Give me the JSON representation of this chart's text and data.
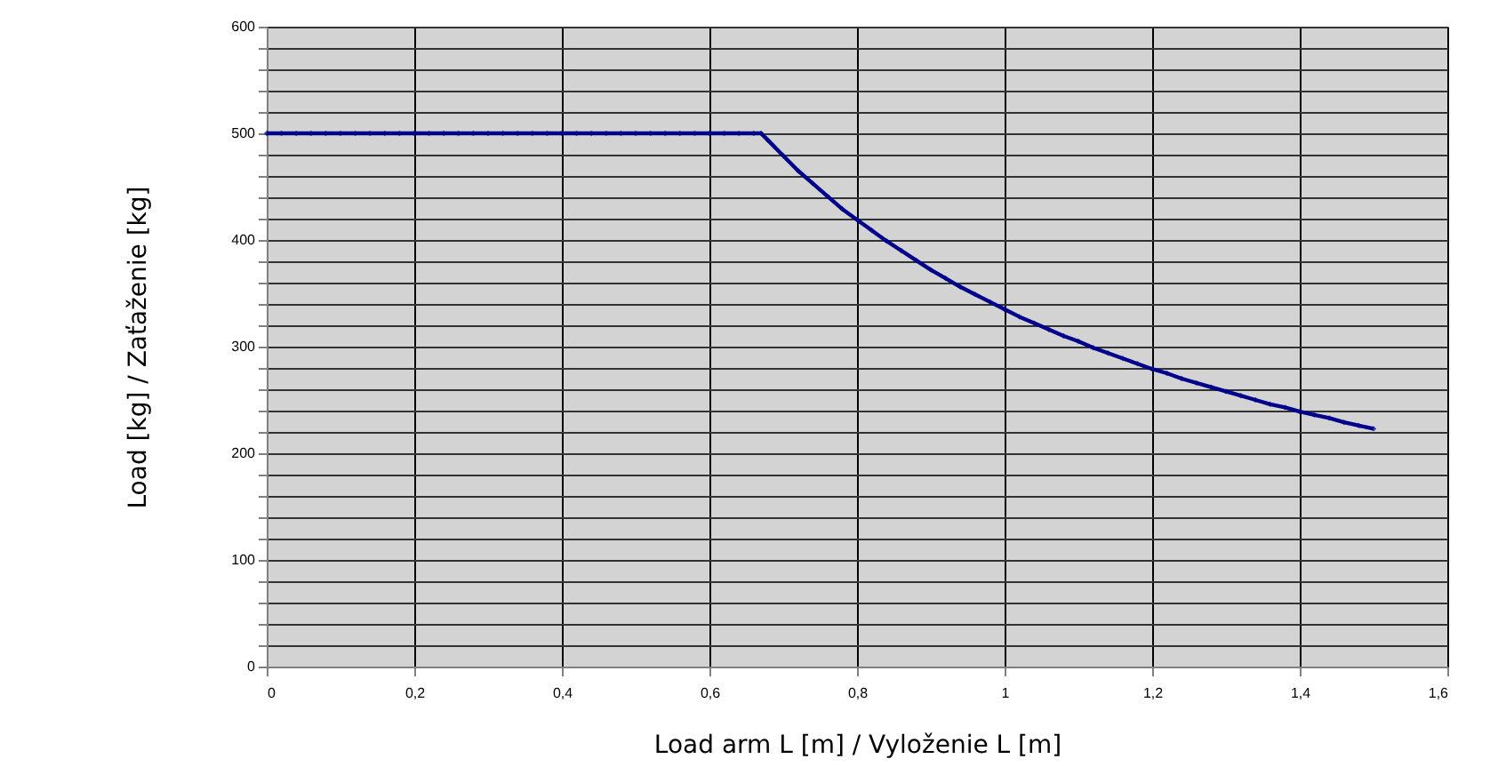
{
  "chart_data": {
    "type": "line",
    "xlabel": "Load arm L [m]  /  Vyloženie L  [m]",
    "ylabel": "Load [kg]  /  Zaťaženie  [kg]",
    "x": [
      0,
      0.02,
      0.04,
      0.06,
      0.08,
      0.1,
      0.12,
      0.14,
      0.16,
      0.18,
      0.2,
      0.22,
      0.24,
      0.26,
      0.28,
      0.3,
      0.32,
      0.34,
      0.36,
      0.38,
      0.4,
      0.42,
      0.44,
      0.46,
      0.48,
      0.5,
      0.52,
      0.54,
      0.56,
      0.58,
      0.6,
      0.62,
      0.64,
      0.66,
      0.67,
      0.68,
      0.7,
      0.72,
      0.74,
      0.76,
      0.78,
      0.8,
      0.82,
      0.84,
      0.86,
      0.88,
      0.9,
      0.92,
      0.94,
      0.96,
      0.98,
      1,
      1.02,
      1.04,
      1.06,
      1.08,
      1.1,
      1.12,
      1.14,
      1.16,
      1.18,
      1.2,
      1.22,
      1.24,
      1.26,
      1.28,
      1.3,
      1.32,
      1.34,
      1.36,
      1.38,
      1.4,
      1.42,
      1.44,
      1.46,
      1.48,
      1.5
    ],
    "series": [
      {
        "color": "#00008b",
        "values": [
          500,
          500,
          500,
          500,
          500,
          500,
          500,
          500,
          500,
          500,
          500,
          500,
          500,
          500,
          500,
          500,
          500,
          500,
          500,
          500,
          500,
          500,
          500,
          500,
          500,
          500,
          500,
          500,
          500,
          500,
          500,
          500,
          500,
          500,
          500,
          493,
          479,
          465,
          453,
          441,
          429,
          419,
          409,
          399,
          390,
          381,
          372,
          364,
          356,
          349,
          342,
          335,
          328,
          322,
          316,
          310,
          305,
          299,
          294,
          289,
          284,
          279,
          275,
          270,
          266,
          262,
          258,
          254,
          250,
          246,
          243,
          239,
          236,
          233,
          229,
          226,
          223
        ]
      }
    ],
    "xlim": [
      0,
      1.6
    ],
    "xticks": [
      0,
      {
        "value": 0.2,
        "label": "0,2"
      },
      {
        "value": 0.4,
        "label": "0,4"
      },
      {
        "value": 0.6,
        "label": "0,6"
      },
      {
        "value": 0.8,
        "label": "0,8"
      },
      1,
      {
        "value": 1.2,
        "label": "1,2"
      },
      {
        "value": 1.4,
        "label": "1,4"
      },
      {
        "value": 1.6,
        "label": "1,6"
      }
    ],
    "ylim": [
      0,
      600
    ],
    "yticks": [
      0,
      {
        "value": 20,
        "label": null
      },
      {
        "value": 40,
        "label": null
      },
      {
        "value": 60,
        "label": null
      },
      {
        "value": 80,
        "label": null
      },
      100,
      {
        "value": 120,
        "label": null
      },
      {
        "value": 140,
        "label": null
      },
      {
        "value": 160,
        "label": null
      },
      {
        "value": 180,
        "label": null
      },
      200,
      {
        "value": 220,
        "label": null
      },
      {
        "value": 240,
        "label": null
      },
      {
        "value": 260,
        "label": null
      },
      {
        "value": 280,
        "label": null
      },
      300,
      {
        "value": 320,
        "label": null
      },
      {
        "value": 340,
        "label": null
      },
      {
        "value": 360,
        "label": null
      },
      {
        "value": 380,
        "label": null
      },
      400,
      {
        "value": 420,
        "label": null
      },
      {
        "value": 440,
        "label": null
      },
      {
        "value": 460,
        "label": null
      },
      {
        "value": 480,
        "label": null
      },
      500,
      {
        "value": 520,
        "label": null
      },
      {
        "value": 540,
        "label": null
      },
      {
        "value": 560,
        "label": null
      },
      {
        "value": 580,
        "label": null
      },
      600
    ],
    "grid": true,
    "marker": "diamond",
    "line_style": "solid"
  }
}
